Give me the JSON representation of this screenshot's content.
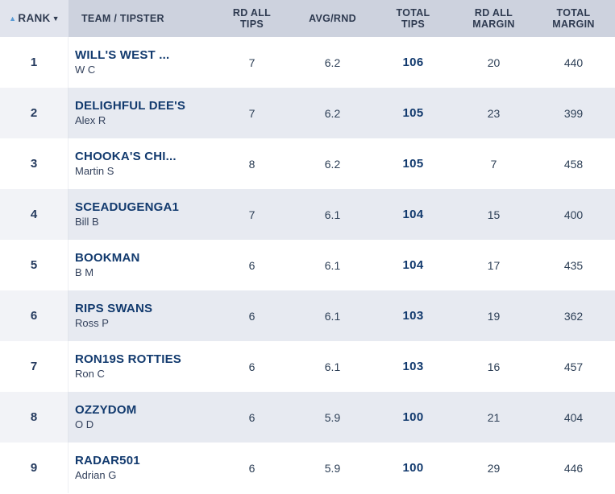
{
  "table": {
    "header": {
      "rank": "RANK",
      "sort_asc_icon": "▲",
      "sort_desc_icon": "▼",
      "team_tipster": "TEAM / TIPSTER",
      "rd_all_tips": "RD ALL\nTIPS",
      "avg_rnd": "AVG/RND",
      "total_tips": "TOTAL\nTIPS",
      "rd_all_margin": "RD ALL\nMARGIN",
      "total_margin": "TOTAL\nMARGIN"
    },
    "rows": [
      {
        "rank": "1",
        "team": "WILL'S WEST ...",
        "tipster": "W C",
        "rd_all_tips": "7",
        "avg_rnd": "6.2",
        "total_tips": "106",
        "rd_all_margin": "20",
        "total_margin": "440"
      },
      {
        "rank": "2",
        "team": "DELIGHFUL DEE'S",
        "tipster": "Alex R",
        "rd_all_tips": "7",
        "avg_rnd": "6.2",
        "total_tips": "105",
        "rd_all_margin": "23",
        "total_margin": "399"
      },
      {
        "rank": "3",
        "team": "CHOOKA'S CHI...",
        "tipster": "Martin S",
        "rd_all_tips": "8",
        "avg_rnd": "6.2",
        "total_tips": "105",
        "rd_all_margin": "7",
        "total_margin": "458"
      },
      {
        "rank": "4",
        "team": "SCEADUGENGA1",
        "tipster": "Bill B",
        "rd_all_tips": "7",
        "avg_rnd": "6.1",
        "total_tips": "104",
        "rd_all_margin": "15",
        "total_margin": "400"
      },
      {
        "rank": "5",
        "team": "BOOKMAN",
        "tipster": "B M",
        "rd_all_tips": "6",
        "avg_rnd": "6.1",
        "total_tips": "104",
        "rd_all_margin": "17",
        "total_margin": "435"
      },
      {
        "rank": "6",
        "team": "RIPS SWANS",
        "tipster": "Ross P",
        "rd_all_tips": "6",
        "avg_rnd": "6.1",
        "total_tips": "103",
        "rd_all_margin": "19",
        "total_margin": "362"
      },
      {
        "rank": "7",
        "team": "RON19S ROTTIES",
        "tipster": "Ron C",
        "rd_all_tips": "6",
        "avg_rnd": "6.1",
        "total_tips": "103",
        "rd_all_margin": "16",
        "total_margin": "457"
      },
      {
        "rank": "8",
        "team": "OZZYDOM",
        "tipster": "O D",
        "rd_all_tips": "6",
        "avg_rnd": "5.9",
        "total_tips": "100",
        "rd_all_margin": "21",
        "total_margin": "404"
      },
      {
        "rank": "9",
        "team": "RADAR501",
        "tipster": "Adrian G",
        "rd_all_tips": "6",
        "avg_rnd": "5.9",
        "total_tips": "100",
        "rd_all_margin": "29",
        "total_margin": "446"
      }
    ],
    "colors": {
      "header_bg": "#cdd2de",
      "header_rank_bg": "#e1e4ed",
      "row_alt_bg": "#e7eaf1",
      "team_text": "#123a6e",
      "header_text": "#2e3a50",
      "sort_asc_arrow": "#5b9bd5",
      "sort_desc_arrow": "#2e3a50"
    }
  }
}
